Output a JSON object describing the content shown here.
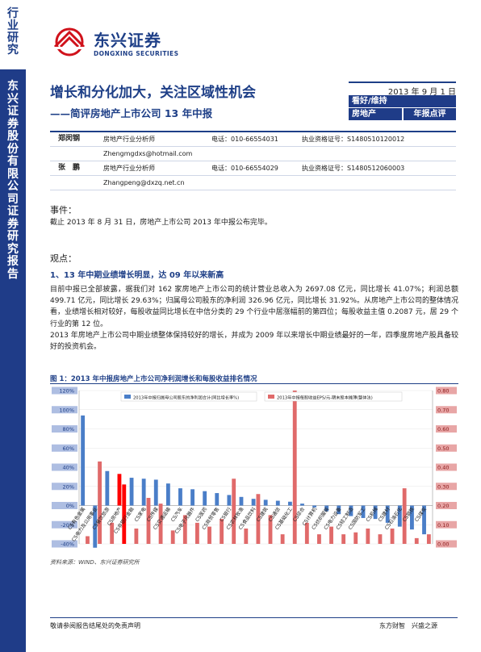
{
  "sidebar": {
    "top_text": "行业研究",
    "band_text": "东兴证券股份有限公司证券研究报告"
  },
  "logo": {
    "cn": "东兴证券",
    "en": "DONGXING SECURITIES"
  },
  "header": {
    "title": "增长和分化加大，关注区域性机会",
    "subtitle": "——简评房地产上市公司 13 年中报",
    "date": "2013 年 9 月 1 日",
    "rating": "看好/维持",
    "sector": "房地产",
    "report_type": "年报点评"
  },
  "analysts": [
    {
      "name": "郑闵钢",
      "title": "房地产行业分析师",
      "phone": "电话：010-66554031",
      "cert": "执业资格证号：S1480510120012",
      "email": "Zhengmgdxs@hotmail.com"
    },
    {
      "name": "张　鹏",
      "title": "房地产行业分析师",
      "phone": "电话：010-66554029",
      "cert": "执业资格证号：S1480512060003",
      "email": "Zhangpeng@dxzq.net.cn"
    }
  ],
  "event": {
    "heading": "事件：",
    "text": "截止 2013 年 8 月 31 日，房地产上市公司 2013 年中报公布完毕。"
  },
  "view": {
    "heading": "观点：",
    "point1": "1、13 年中期业绩增长明显，达 09 年以来新高",
    "para1": "目前中报已全部披露，据我们对 162 家房地产上市公司的统计营业总收入为 2697.08 亿元，同比增长 41.07%；利润总额 499.71 亿元，同比增长 29.63%；归属母公司股东的净利润 326.96 亿元，同比增长 31.92%。从房地产上市公司的整体情况看，业绩增长相对较好，每股收益同比增长在中信分类的 29 个行业中居涨幅前的第四位；每股收益主值 0.2087 元，居 29 个行业的第 12 位。",
    "para2": "2013 年房地产上市公司中期业绩整体保持较好的增长，并成为 2009 年以来增长中期业绩最好的一年，四季度房地产股具备较好的投资机会。"
  },
  "figure": {
    "title": "图 1：2013 年中报房地产上市公司净利润增长和每股收益排名情况",
    "source": "资料来源：WIND、东兴证券研究所"
  },
  "chart_data": {
    "type": "bar",
    "categories": [
      "CS有色金属",
      "CS电力及公用事业",
      "CS餐饮旅游",
      "CS房地产",
      "CS非银行金融",
      "CS家电",
      "CS传媒",
      "CS交通运输",
      "CS汽车",
      "CS电子元器件",
      "CS医药",
      "CS商贸零售",
      "CS银行",
      "CS农林牧渔",
      "CS食品饮料",
      "CS建筑",
      "CS通信",
      "CS基础化工",
      "CS综合",
      "CS计算机",
      "CS纺织服装",
      "CS电力设备",
      "CS轻工制造",
      "CS国防军工",
      "CS机械",
      "CS建材",
      "CS石油石化",
      "CS钢铁",
      "CS煤炭"
    ],
    "series": [
      {
        "name": "2013年中报归属母公司股东的净利润合计(同比增长率%)",
        "axis": "left",
        "values": [
          94,
          -44,
          36,
          33,
          29,
          28,
          27,
          23,
          18,
          17,
          15,
          13,
          11,
          9,
          7,
          6,
          5,
          4,
          2,
          -2,
          -6,
          -9,
          -11,
          -13,
          -14,
          -18,
          -22,
          -25,
          -30
        ]
      },
      {
        "name": "2013年中报每股收益EPS/元-期末股本摊薄(整体法)",
        "axis": "right",
        "values": [
          0.04,
          0.43,
          0.11,
          0.31,
          0.08,
          0.24,
          0.21,
          0.07,
          0.15,
          0.11,
          0.09,
          0.13,
          0.34,
          0.08,
          0.26,
          0.15,
          0.05,
          0.8,
          0.11,
          0.05,
          0.09,
          0.05,
          0.06,
          0.08,
          0.05,
          0.08,
          0.29,
          0.03,
          0.05
        ]
      }
    ],
    "highlight_category": "CS房地产",
    "left_axis": {
      "min": -40,
      "max": 120,
      "ticks": [
        "-40%",
        "-20%",
        "0%",
        "20%",
        "40%",
        "60%",
        "80%",
        "100%",
        "120%"
      ]
    },
    "right_axis": {
      "min": 0.0,
      "max": 0.8,
      "ticks": [
        "0.00",
        "0.10",
        "0.20",
        "0.30",
        "0.40",
        "0.50",
        "0.60",
        "0.70",
        "0.80"
      ]
    },
    "colors": {
      "left_series": "#4a7ec8",
      "right_series": "#e06a6a",
      "highlight": "#ff0000",
      "axis_label_bg": "#e8a6a6",
      "left_axis_bg": "#aebee2"
    }
  },
  "footer": {
    "left": "敬请参阅报告结尾处的免责声明",
    "right": "东方财智　兴盛之源"
  }
}
